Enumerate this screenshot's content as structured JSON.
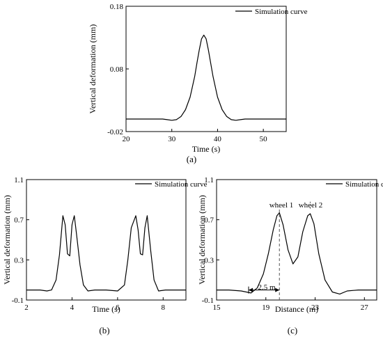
{
  "panel_labels": [
    "(a)",
    "(b)",
    "(c)"
  ],
  "chart_data": [
    {
      "type": "line",
      "panel": "(a)",
      "xlabel": "Time (s)",
      "ylabel": "Vertical deformation (mm)",
      "xlim": [
        20,
        55
      ],
      "ylim": [
        -0.02,
        0.18
      ],
      "xticks": [
        "20",
        "30",
        "40",
        "50"
      ],
      "yticks": [
        "-0.02",
        "0.08",
        "0.18"
      ],
      "legend": "top-right",
      "grid": false,
      "series": [
        {
          "name": "Simulation curve",
          "x": [
            20,
            25,
            28,
            29,
            30,
            31,
            32,
            33,
            34,
            35,
            35.5,
            36,
            36.5,
            37,
            37.5,
            38,
            39,
            40,
            41,
            42,
            43,
            44,
            45,
            46,
            50,
            55
          ],
          "y": [
            0.0,
            0.0,
            0.0,
            -0.001,
            -0.002,
            -0.001,
            0.004,
            0.015,
            0.035,
            0.068,
            0.09,
            0.11,
            0.128,
            0.134,
            0.128,
            0.11,
            0.068,
            0.035,
            0.015,
            0.004,
            -0.001,
            -0.002,
            -0.001,
            0.0,
            0.0,
            0.0
          ]
        }
      ]
    },
    {
      "type": "line",
      "panel": "(b)",
      "xlabel": "Time (s)",
      "ylabel": "Vertical deformation (mm)",
      "xlim": [
        2,
        9
      ],
      "ylim": [
        -0.1,
        1.1
      ],
      "xticks": [
        "2",
        "4",
        "6",
        "8"
      ],
      "yticks": [
        "-0.1",
        "0.3",
        "0.7",
        "1.1"
      ],
      "legend": "top-right",
      "grid": false,
      "series": [
        {
          "name": "Simulation curve",
          "x": [
            2.0,
            2.6,
            2.9,
            3.1,
            3.3,
            3.45,
            3.6,
            3.7,
            3.8,
            3.9,
            4.0,
            4.1,
            4.2,
            4.35,
            4.5,
            4.7,
            5.0,
            5.5,
            6.0,
            6.3,
            6.45,
            6.6,
            6.8,
            6.9,
            7.0,
            7.1,
            7.2,
            7.3,
            7.45,
            7.6,
            7.8,
            8.1,
            8.5,
            9.0
          ],
          "y": [
            0.0,
            0.0,
            -0.01,
            0.0,
            0.1,
            0.35,
            0.74,
            0.65,
            0.36,
            0.34,
            0.65,
            0.74,
            0.55,
            0.25,
            0.05,
            -0.01,
            0.0,
            0.0,
            -0.01,
            0.05,
            0.3,
            0.62,
            0.74,
            0.6,
            0.36,
            0.35,
            0.62,
            0.74,
            0.4,
            0.1,
            -0.01,
            0.0,
            0.0,
            0.0
          ]
        }
      ]
    },
    {
      "type": "line",
      "panel": "(c)",
      "xlabel": "Distance (m)",
      "ylabel": "Vertical deformation (mm)",
      "xlim": [
        15,
        28
      ],
      "ylim": [
        -0.1,
        1.1
      ],
      "xticks": [
        "15",
        "19",
        "23",
        "27"
      ],
      "yticks": [
        "-0.1",
        "0.3",
        "0.7",
        "1.1"
      ],
      "legend": "top-right",
      "grid": false,
      "annotations": [
        "wheel 1",
        "wheel 2",
        "2.5 m"
      ],
      "series": [
        {
          "name": "Simulation curve",
          "x": [
            15.0,
            16.0,
            17.0,
            17.8,
            18.3,
            18.8,
            19.2,
            19.6,
            19.9,
            20.1,
            20.4,
            20.8,
            21.2,
            21.6,
            22.0,
            22.4,
            22.6,
            22.9,
            23.3,
            23.8,
            24.4,
            25.0,
            25.6,
            26.5,
            28.0
          ],
          "y": [
            0.0,
            0.0,
            -0.01,
            -0.03,
            0.02,
            0.16,
            0.36,
            0.6,
            0.74,
            0.77,
            0.65,
            0.4,
            0.26,
            0.33,
            0.58,
            0.74,
            0.76,
            0.66,
            0.36,
            0.1,
            -0.02,
            -0.04,
            -0.01,
            0.0,
            0.0
          ]
        }
      ]
    }
  ]
}
